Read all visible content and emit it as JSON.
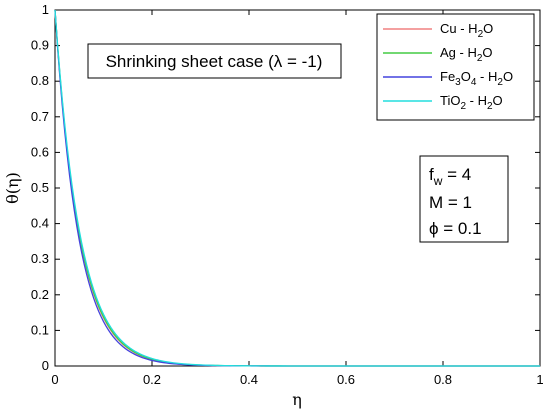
{
  "chart_data": {
    "type": "line",
    "xlabel": "η",
    "ylabel": "θ(η)",
    "xlim": [
      0,
      1
    ],
    "ylim": [
      0,
      1
    ],
    "x_ticks": [
      "0",
      "0.2",
      "0.4",
      "0.6",
      "0.8",
      "1"
    ],
    "y_ticks": [
      "0",
      "0.1",
      "0.2",
      "0.3",
      "0.4",
      "0.5",
      "0.6",
      "0.7",
      "0.8",
      "0.9",
      "1"
    ],
    "grid": false,
    "legend_position": "top-right",
    "annotation": "Shrinking sheet case (λ = -1)",
    "params": {
      "fw": {
        "sym": "f",
        "sub": "w",
        "val": " = 4"
      },
      "M": "M = 1",
      "phi": "ϕ = 0.1"
    },
    "series": [
      {
        "name": "Cu - H2O",
        "legend": {
          "p1": "Cu - H",
          "s1": "2",
          "p2": "O"
        },
        "color": "#f08080",
        "k": 20.0
      },
      {
        "name": "Ag - H2O",
        "legend": {
          "p1": "Ag - H",
          "s1": "2",
          "p2": "O"
        },
        "color": "#44cc44",
        "k": 19.8
      },
      {
        "name": "Fe3O4 - H2O",
        "legend": {
          "p1": "Fe",
          "s1": "3",
          "p2": "O",
          "s2": "4",
          "p3": " - H",
          "s3": "2",
          "p4": "O"
        },
        "color": "#4444dd",
        "k": 20.8
      },
      {
        "name": "TiO2 - H2O",
        "legend": {
          "p1": "TiO",
          "s1": "2",
          "p2": " - H",
          "s2": "2",
          "p3": "O"
        },
        "color": "#22dddd",
        "k": 19.3
      }
    ]
  }
}
